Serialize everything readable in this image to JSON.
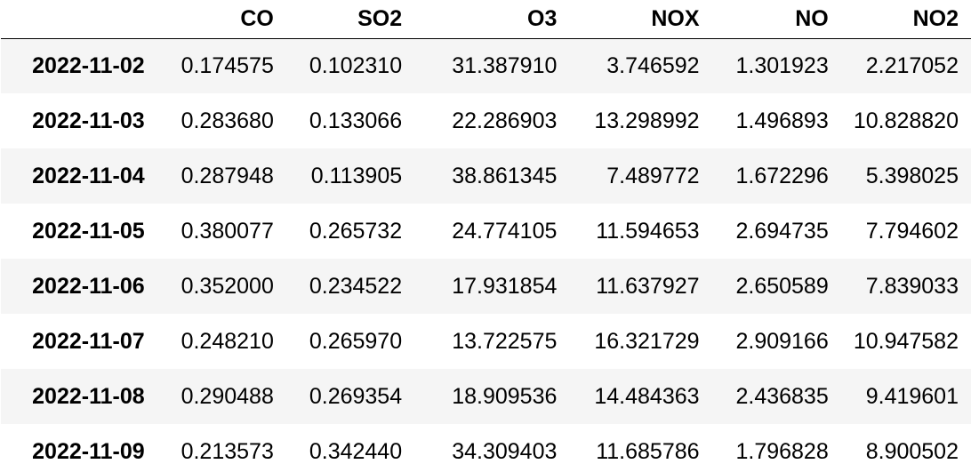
{
  "chart_data": {
    "type": "table",
    "columns": [
      "CO",
      "SO2",
      "O3",
      "NOX",
      "NO",
      "NO2"
    ],
    "rows": [
      {
        "index": "2022-11-02",
        "values": [
          "0.174575",
          "0.102310",
          "31.387910",
          "3.746592",
          "1.301923",
          "2.217052"
        ]
      },
      {
        "index": "2022-11-03",
        "values": [
          "0.283680",
          "0.133066",
          "22.286903",
          "13.298992",
          "1.496893",
          "10.828820"
        ]
      },
      {
        "index": "2022-11-04",
        "values": [
          "0.287948",
          "0.113905",
          "38.861345",
          "7.489772",
          "1.672296",
          "5.398025"
        ]
      },
      {
        "index": "2022-11-05",
        "values": [
          "0.380077",
          "0.265732",
          "24.774105",
          "11.594653",
          "2.694735",
          "7.794602"
        ]
      },
      {
        "index": "2022-11-06",
        "values": [
          "0.352000",
          "0.234522",
          "17.931854",
          "11.637927",
          "2.650589",
          "7.839033"
        ]
      },
      {
        "index": "2022-11-07",
        "values": [
          "0.248210",
          "0.265970",
          "13.722575",
          "16.321729",
          "2.909166",
          "10.947582"
        ]
      },
      {
        "index": "2022-11-08",
        "values": [
          "0.290488",
          "0.269354",
          "18.909536",
          "14.484363",
          "2.436835",
          "9.419601"
        ]
      },
      {
        "index": "2022-11-09",
        "values": [
          "0.213573",
          "0.342440",
          "34.309403",
          "11.685786",
          "1.796828",
          "8.900502"
        ]
      }
    ]
  }
}
